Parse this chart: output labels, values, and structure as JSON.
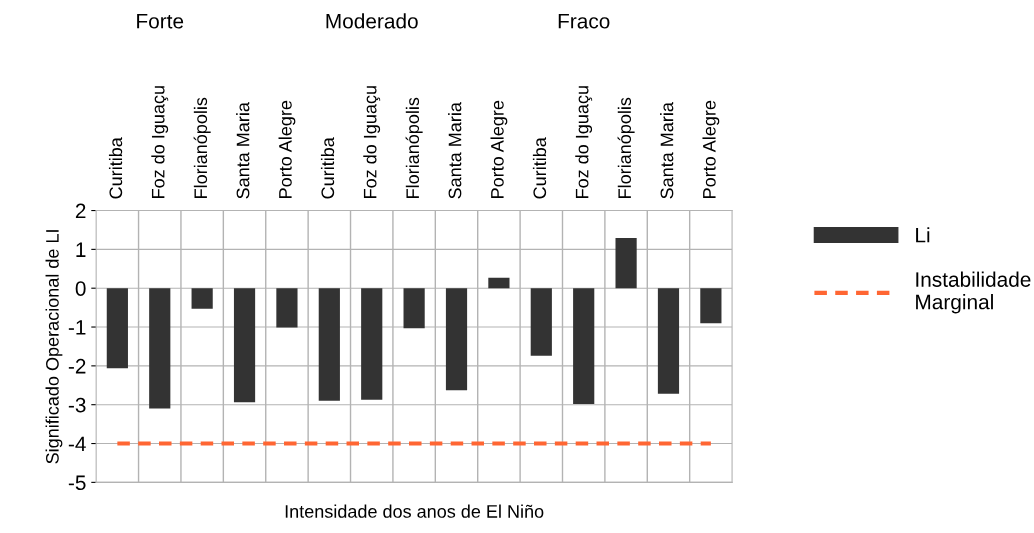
{
  "chart_data": {
    "type": "bar",
    "xlabel": "Intensidade dos anos de El Niño",
    "ylabel": "Significado Operacional de LI",
    "categories": [
      "Curitiba",
      "Foz do Iguaçu",
      "Florianópolis",
      "Santa Maria",
      "Porto Alegre",
      "Curitiba",
      "Foz do Iguaçu",
      "Florianópolis",
      "Santa Maria",
      "Porto Alegre",
      "Curitiba",
      "Foz do Iguaçu",
      "Florianópolis",
      "Santa Maria",
      "Porto Alegre"
    ],
    "series": [
      {
        "name": "Li",
        "color": "#333333",
        "values": [
          -2.06,
          -3.1,
          -0.53,
          -2.94,
          -1.01,
          -2.9,
          -2.87,
          -1.03,
          -2.63,
          0.27,
          -1.74,
          -2.98,
          1.29,
          -2.72,
          -0.9
        ]
      }
    ],
    "ref_lines": [
      {
        "axis": "y",
        "value": -4,
        "label": "Instabilidade\nMarginal",
        "color": "#ff6633",
        "line_style": "dashed"
      }
    ],
    "annotations": [
      "Forte",
      "Moderado",
      "Fraco"
    ],
    "ylim": [
      -5,
      2
    ],
    "yticks": [
      -5,
      -4,
      -3,
      -2,
      -1,
      0,
      1,
      2
    ],
    "grid": true,
    "legend": "right"
  }
}
